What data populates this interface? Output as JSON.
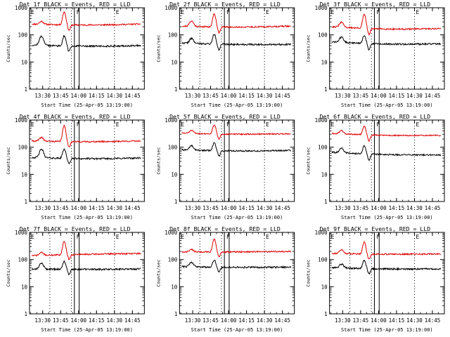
{
  "figure": {
    "colors": {
      "events": "#000000",
      "lld": "#e00000",
      "axes": "#000000",
      "background": "#ffffff"
    }
  },
  "chart_data": [
    {
      "type": "line",
      "title": "Det 1f BLACK = Events, RED = LLD",
      "xlabel": "Start Time (25-Apr-05 13:19:00)",
      "ylabel": "Counts/sec",
      "yscale": "log",
      "ylim": [
        1,
        1000
      ],
      "xlim": [
        0,
        96
      ],
      "x_ticks": [
        {
          "v": 11,
          "label": "13:30"
        },
        {
          "v": 26,
          "label": "13:45"
        },
        {
          "v": 41,
          "label": "14:00"
        },
        {
          "v": 56,
          "label": "14:15"
        },
        {
          "v": 71,
          "label": "14:30"
        },
        {
          "v": 86,
          "label": "14:45"
        }
      ],
      "y_ticks": [
        {
          "v": 1,
          "label": "1"
        },
        {
          "v": 10,
          "label": "10"
        },
        {
          "v": 100,
          "label": "100"
        },
        {
          "v": 1000,
          "label": "1000"
        }
      ],
      "markers": [
        {
          "label": "E",
          "x": 0
        },
        {
          "label": "F",
          "x": 38
        },
        {
          "label": "E",
          "x": 71
        }
      ],
      "dotted_lines_x": [
        17,
        35,
        71
      ],
      "box_x": [
        37.5,
        41.5
      ],
      "series": [
        {
          "color": "#e00000",
          "baseline": 250,
          "peak": 720,
          "peak_x": 29,
          "shoulder": 320,
          "shoulder_x": 10,
          "trend": -0.25,
          "end_ratio": 1.0,
          "noise": 0.06,
          "seed": 11
        },
        {
          "color": "#000000",
          "baseline": 42,
          "peak": 95,
          "peak_x": 29,
          "shoulder": 90,
          "shoulder_x": 10,
          "trend": -0.2,
          "end_ratio": 0.95,
          "noise": 0.07,
          "seed": 12
        }
      ]
    },
    {
      "type": "line",
      "title": "Det 2f BLACK = Events, RED = LLD",
      "xlabel": "Start Time (25-Apr-05 13:19:00)",
      "ylabel": "Counts/sec",
      "yscale": "log",
      "ylim": [
        1,
        1000
      ],
      "xlim": [
        0,
        96
      ],
      "x_ticks": [
        {
          "v": 11,
          "label": "13:30"
        },
        {
          "v": 26,
          "label": "13:45"
        },
        {
          "v": 41,
          "label": "14:00"
        },
        {
          "v": 56,
          "label": "14:15"
        },
        {
          "v": 71,
          "label": "14:30"
        },
        {
          "v": 86,
          "label": "14:45"
        }
      ],
      "y_ticks": [
        {
          "v": 1,
          "label": "1"
        },
        {
          "v": 10,
          "label": "10"
        },
        {
          "v": 100,
          "label": "100"
        },
        {
          "v": 1000,
          "label": "1000"
        }
      ],
      "markers": [
        {
          "label": "E",
          "x": 0
        },
        {
          "label": "F",
          "x": 38
        },
        {
          "label": "E",
          "x": 71
        }
      ],
      "dotted_lines_x": [
        17,
        35,
        71
      ],
      "box_x": [
        37.5,
        41.5
      ],
      "series": [
        {
          "color": "#e00000",
          "baseline": 210,
          "peak": 600,
          "peak_x": 29,
          "shoulder": 330,
          "shoulder_x": 10,
          "trend": -0.25,
          "end_ratio": 1.0,
          "noise": 0.06,
          "seed": 21
        },
        {
          "color": "#000000",
          "baseline": 50,
          "peak": 110,
          "peak_x": 29,
          "shoulder": 75,
          "shoulder_x": 10,
          "trend": -0.2,
          "end_ratio": 0.9,
          "noise": 0.07,
          "seed": 22
        }
      ]
    },
    {
      "type": "line",
      "title": "Det 3f BLACK = Events, RED = LLD",
      "xlabel": "Start Time (25-Apr-05 13:19:00)",
      "ylabel": "Counts/sec",
      "yscale": "log",
      "ylim": [
        1,
        1000
      ],
      "xlim": [
        0,
        96
      ],
      "x_ticks": [
        {
          "v": 11,
          "label": "13:30"
        },
        {
          "v": 26,
          "label": "13:45"
        },
        {
          "v": 41,
          "label": "14:00"
        },
        {
          "v": 56,
          "label": "14:15"
        },
        {
          "v": 71,
          "label": "14:30"
        },
        {
          "v": 86,
          "label": "14:45"
        }
      ],
      "y_ticks": [
        {
          "v": 1,
          "label": "1"
        },
        {
          "v": 10,
          "label": "10"
        },
        {
          "v": 100,
          "label": "100"
        },
        {
          "v": 1000,
          "label": "1000"
        }
      ],
      "markers": [
        {
          "label": "E",
          "x": 0
        },
        {
          "label": "F",
          "x": 38
        },
        {
          "label": "E",
          "x": 71
        }
      ],
      "dotted_lines_x": [
        17,
        35,
        71
      ],
      "box_x": [
        37.5,
        41.5
      ],
      "series": [
        {
          "color": "#e00000",
          "baseline": 200,
          "peak": 580,
          "peak_x": 29,
          "shoulder": 300,
          "shoulder_x": 10,
          "trend": -0.35,
          "end_ratio": 0.85,
          "noise": 0.06,
          "seed": 31
        },
        {
          "color": "#000000",
          "baseline": 55,
          "peak": 100,
          "peak_x": 29,
          "shoulder": 85,
          "shoulder_x": 10,
          "trend": -0.3,
          "end_ratio": 0.85,
          "noise": 0.07,
          "seed": 32
        }
      ]
    },
    {
      "type": "line",
      "title": "Det 4f BLACK = Events, RED = LLD",
      "xlabel": "Start Time (25-Apr-05 13:19:00)",
      "ylabel": "Counts/sec",
      "yscale": "log",
      "ylim": [
        1,
        1000
      ],
      "xlim": [
        0,
        96
      ],
      "x_ticks": [
        {
          "v": 11,
          "label": "13:30"
        },
        {
          "v": 26,
          "label": "13:45"
        },
        {
          "v": 41,
          "label": "14:00"
        },
        {
          "v": 56,
          "label": "14:15"
        },
        {
          "v": 71,
          "label": "14:30"
        },
        {
          "v": 86,
          "label": "14:45"
        }
      ],
      "y_ticks": [
        {
          "v": 1,
          "label": "1"
        },
        {
          "v": 10,
          "label": "10"
        },
        {
          "v": 100,
          "label": "100"
        },
        {
          "v": 1000,
          "label": "1000"
        }
      ],
      "markers": [
        {
          "label": "E",
          "x": 0
        },
        {
          "label": "F",
          "x": 38
        },
        {
          "label": "E",
          "x": 71
        }
      ],
      "dotted_lines_x": [
        17,
        35,
        71
      ],
      "box_x": [
        37.5,
        41.5
      ],
      "series": [
        {
          "color": "#e00000",
          "baseline": 170,
          "peak": 620,
          "peak_x": 29,
          "shoulder": 230,
          "shoulder_x": 10,
          "trend": -0.2,
          "end_ratio": 1.0,
          "noise": 0.06,
          "seed": 41
        },
        {
          "color": "#000000",
          "baseline": 42,
          "peak": 90,
          "peak_x": 29,
          "shoulder": 85,
          "shoulder_x": 10,
          "trend": -0.25,
          "end_ratio": 0.95,
          "noise": 0.07,
          "seed": 42
        }
      ]
    },
    {
      "type": "line",
      "title": "Det 5f BLACK = Events, RED = LLD",
      "xlabel": "Start Time (25-Apr-05 13:19:00)",
      "ylabel": "Counts/sec",
      "yscale": "log",
      "ylim": [
        1,
        1000
      ],
      "xlim": [
        0,
        96
      ],
      "x_ticks": [
        {
          "v": 11,
          "label": "13:30"
        },
        {
          "v": 26,
          "label": "13:45"
        },
        {
          "v": 41,
          "label": "14:00"
        },
        {
          "v": 56,
          "label": "14:15"
        },
        {
          "v": 71,
          "label": "14:30"
        },
        {
          "v": 86,
          "label": "14:45"
        }
      ],
      "y_ticks": [
        {
          "v": 1,
          "label": "1"
        },
        {
          "v": 10,
          "label": "10"
        },
        {
          "v": 100,
          "label": "100"
        },
        {
          "v": 1000,
          "label": "1000"
        }
      ],
      "markers": [
        {
          "label": "E",
          "x": 0
        },
        {
          "label": "F",
          "x": 38
        },
        {
          "label": "E",
          "x": 71
        }
      ],
      "dotted_lines_x": [
        17,
        35,
        71
      ],
      "box_x": [
        37.5,
        41.5
      ],
      "series": [
        {
          "color": "#e00000",
          "baseline": 330,
          "peak": 700,
          "peak_x": 29,
          "shoulder": 420,
          "shoulder_x": 10,
          "trend": -0.2,
          "end_ratio": 0.95,
          "noise": 0.05,
          "seed": 51
        },
        {
          "color": "#000000",
          "baseline": 80,
          "peak": 150,
          "peak_x": 29,
          "shoulder": 115,
          "shoulder_x": 10,
          "trend": -0.2,
          "end_ratio": 0.95,
          "noise": 0.06,
          "seed": 52
        }
      ]
    },
    {
      "type": "line",
      "title": "Det 6f BLACK = Events, RED = LLD",
      "xlabel": "Start Time (25-Apr-05 13:19:00)",
      "ylabel": "Counts/sec",
      "yscale": "log",
      "ylim": [
        1,
        1000
      ],
      "xlim": [
        0,
        96
      ],
      "x_ticks": [
        {
          "v": 11,
          "label": "13:30"
        },
        {
          "v": 26,
          "label": "13:45"
        },
        {
          "v": 41,
          "label": "14:00"
        },
        {
          "v": 56,
          "label": "14:15"
        },
        {
          "v": 71,
          "label": "14:30"
        },
        {
          "v": 86,
          "label": "14:45"
        }
      ],
      "y_ticks": [
        {
          "v": 1,
          "label": "1"
        },
        {
          "v": 10,
          "label": "10"
        },
        {
          "v": 100,
          "label": "100"
        },
        {
          "v": 1000,
          "label": "1000"
        }
      ],
      "markers": [
        {
          "label": "E",
          "x": 0
        },
        {
          "label": "F",
          "x": 38
        },
        {
          "label": "E",
          "x": 71
        }
      ],
      "dotted_lines_x": [
        17,
        35,
        71
      ],
      "box_x": [
        37.5,
        41.5
      ],
      "series": [
        {
          "color": "#e00000",
          "baseline": 320,
          "peak": 620,
          "peak_x": 29,
          "shoulder": 420,
          "shoulder_x": 10,
          "trend": -0.25,
          "end_ratio": 0.85,
          "noise": 0.05,
          "seed": 61
        },
        {
          "color": "#000000",
          "baseline": 65,
          "peak": 120,
          "peak_x": 29,
          "shoulder": 95,
          "shoulder_x": 10,
          "trend": -0.25,
          "end_ratio": 0.8,
          "noise": 0.06,
          "seed": 62
        }
      ]
    },
    {
      "type": "line",
      "title": "Det 7f BLACK = Events, RED = LLD",
      "xlabel": "Start Time (25-Apr-05 13:19:00)",
      "ylabel": "Counts/sec",
      "yscale": "log",
      "ylim": [
        1,
        1000
      ],
      "xlim": [
        0,
        96
      ],
      "x_ticks": [
        {
          "v": 11,
          "label": "13:30"
        },
        {
          "v": 26,
          "label": "13:45"
        },
        {
          "v": 41,
          "label": "14:00"
        },
        {
          "v": 56,
          "label": "14:15"
        },
        {
          "v": 71,
          "label": "14:30"
        },
        {
          "v": 86,
          "label": "14:45"
        }
      ],
      "y_ticks": [
        {
          "v": 1,
          "label": "1"
        },
        {
          "v": 10,
          "label": "10"
        },
        {
          "v": 100,
          "label": "100"
        },
        {
          "v": 1000,
          "label": "1000"
        }
      ],
      "markers": [
        {
          "label": "E",
          "x": 0
        },
        {
          "label": "F",
          "x": 38
        },
        {
          "label": "E",
          "x": 71
        }
      ],
      "dotted_lines_x": [
        17,
        35,
        71
      ],
      "box_x": [
        37.5,
        41.5
      ],
      "series": [
        {
          "color": "#e00000",
          "baseline": 140,
          "peak": 460,
          "peak_x": 29,
          "shoulder": 180,
          "shoulder_x": 10,
          "trend": 0.05,
          "end_ratio": 1.2,
          "noise": 0.06,
          "seed": 71
        },
        {
          "color": "#000000",
          "baseline": 45,
          "peak": 85,
          "peak_x": 29,
          "shoulder": 75,
          "shoulder_x": 10,
          "trend": -0.1,
          "end_ratio": 1.0,
          "noise": 0.07,
          "seed": 72
        }
      ]
    },
    {
      "type": "line",
      "title": "Det 8f BLACK = Events, RED = LLD",
      "xlabel": "Start Time (25-Apr-05 13:19:00)",
      "ylabel": "Counts/sec",
      "yscale": "log",
      "ylim": [
        1,
        1000
      ],
      "xlim": [
        0,
        96
      ],
      "x_ticks": [
        {
          "v": 11,
          "label": "13:30"
        },
        {
          "v": 26,
          "label": "13:45"
        },
        {
          "v": 41,
          "label": "14:00"
        },
        {
          "v": 56,
          "label": "14:15"
        },
        {
          "v": 71,
          "label": "14:30"
        },
        {
          "v": 86,
          "label": "14:45"
        }
      ],
      "y_ticks": [
        {
          "v": 1,
          "label": "1"
        },
        {
          "v": 10,
          "label": "10"
        },
        {
          "v": 100,
          "label": "100"
        },
        {
          "v": 1000,
          "label": "1000"
        }
      ],
      "markers": [
        {
          "label": "E",
          "x": 0
        },
        {
          "label": "F",
          "x": 38
        },
        {
          "label": "E",
          "x": 71
        }
      ],
      "dotted_lines_x": [
        17,
        35,
        71
      ],
      "box_x": [
        37.5,
        41.5
      ],
      "series": [
        {
          "color": "#e00000",
          "baseline": 190,
          "peak": 560,
          "peak_x": 29,
          "shoulder": 240,
          "shoulder_x": 10,
          "trend": -0.05,
          "end_ratio": 1.05,
          "noise": 0.06,
          "seed": 81
        },
        {
          "color": "#000000",
          "baseline": 55,
          "peak": 100,
          "peak_x": 29,
          "shoulder": 80,
          "shoulder_x": 10,
          "trend": -0.1,
          "end_ratio": 0.95,
          "noise": 0.07,
          "seed": 82
        }
      ]
    },
    {
      "type": "line",
      "title": "Det 9f BLACK = Events, RED = LLD",
      "xlabel": "Start Time (25-Apr-05 13:19:00)",
      "ylabel": "Counts/sec",
      "yscale": "log",
      "ylim": [
        1,
        1000
      ],
      "xlim": [
        0,
        96
      ],
      "x_ticks": [
        {
          "v": 11,
          "label": "13:30"
        },
        {
          "v": 26,
          "label": "13:45"
        },
        {
          "v": 41,
          "label": "14:00"
        },
        {
          "v": 56,
          "label": "14:15"
        },
        {
          "v": 71,
          "label": "14:30"
        },
        {
          "v": 86,
          "label": "14:45"
        }
      ],
      "y_ticks": [
        {
          "v": 1,
          "label": "1"
        },
        {
          "v": 10,
          "label": "10"
        },
        {
          "v": 100,
          "label": "100"
        },
        {
          "v": 1000,
          "label": "1000"
        }
      ],
      "markers": [
        {
          "label": "E",
          "x": 0
        },
        {
          "label": "F",
          "x": 38
        },
        {
          "label": "E",
          "x": 71
        }
      ],
      "dotted_lines_x": [
        17,
        35,
        71
      ],
      "box_x": [
        37.5,
        41.5
      ],
      "series": [
        {
          "color": "#e00000",
          "baseline": 170,
          "peak": 450,
          "peak_x": 29,
          "shoulder": 230,
          "shoulder_x": 10,
          "trend": -0.15,
          "end_ratio": 0.95,
          "noise": 0.06,
          "seed": 91
        },
        {
          "color": "#000000",
          "baseline": 50,
          "peak": 95,
          "peak_x": 29,
          "shoulder": 70,
          "shoulder_x": 10,
          "trend": -0.15,
          "end_ratio": 0.9,
          "noise": 0.07,
          "seed": 92
        }
      ]
    }
  ]
}
